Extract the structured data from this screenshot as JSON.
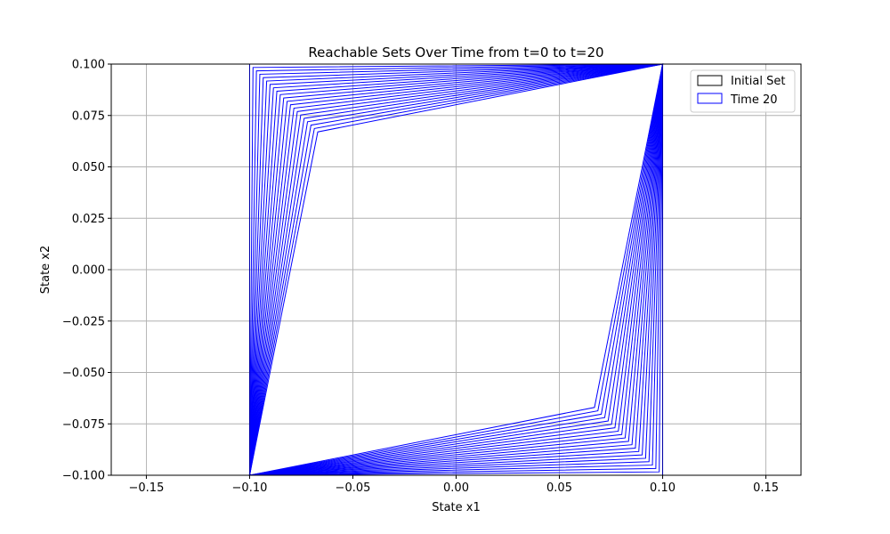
{
  "chart_data": {
    "type": "line",
    "title": "Reachable Sets Over Time from t=0 to t=20",
    "xlabel": "State x1",
    "ylabel": "State x2",
    "xlim": [
      -0.167,
      0.167
    ],
    "ylim": [
      -0.1,
      0.1
    ],
    "x_ticks": [
      -0.15,
      -0.1,
      -0.05,
      0.0,
      0.05,
      0.1,
      0.15
    ],
    "x_tick_labels": [
      "−0.15",
      "−0.10",
      "−0.05",
      "0.00",
      "0.05",
      "0.10",
      "0.15"
    ],
    "y_ticks": [
      -0.1,
      -0.075,
      -0.05,
      -0.025,
      0.0,
      0.025,
      0.05,
      0.075,
      0.1
    ],
    "y_tick_labels": [
      "−0.100",
      "−0.075",
      "−0.050",
      "−0.025",
      "0.000",
      "0.025",
      "0.050",
      "0.075",
      "0.100"
    ],
    "grid": true,
    "legend_position": "top-right",
    "legend": [
      {
        "label": "Initial Set",
        "color": "#000000"
      },
      {
        "label": "Time 20",
        "color": "#0000ff"
      }
    ],
    "initial_set": {
      "name": "Initial Set",
      "color": "#000000",
      "vertices": [
        [
          -0.1,
          -0.1
        ],
        [
          0.1,
          -0.1
        ],
        [
          0.1,
          0.1
        ],
        [
          -0.1,
          0.1
        ]
      ]
    },
    "reachable_sets": {
      "color": "#0000ff",
      "time_start": 0,
      "time_end": 20,
      "fixed_vertices": [
        [
          -0.1,
          -0.1
        ],
        [
          0.1,
          0.1
        ]
      ],
      "inner_corner_final": [
        -0.067,
        0.067
      ],
      "steps_shown": 21
    },
    "grid_color": "#b0b0b0"
  }
}
